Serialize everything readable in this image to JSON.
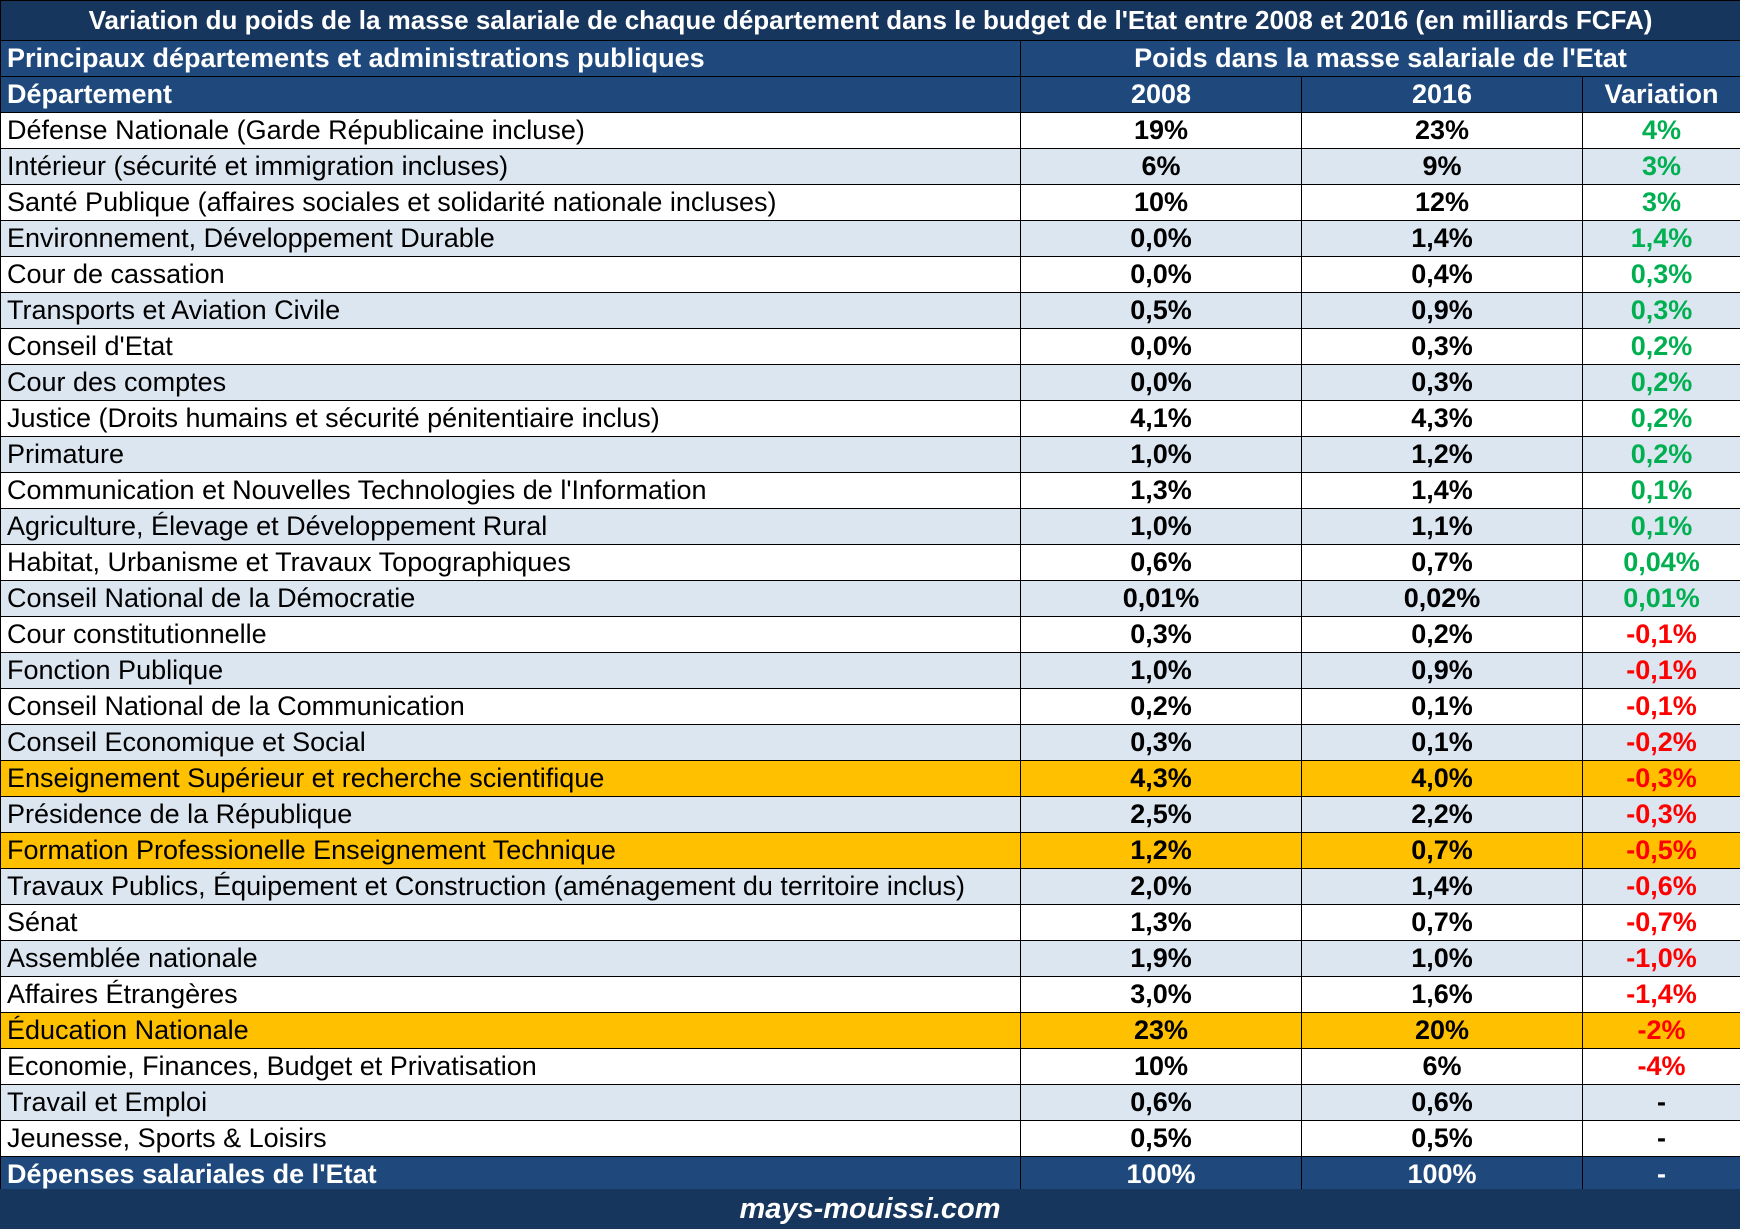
{
  "title": "Variation du poids de la masse salariale de chaque département dans le budget de l'Etat entre 2008 et 2016 (en milliards FCFA)",
  "group_headers": {
    "left": "Principaux départements et administrations publiques",
    "right": "Poids dans la masse salariale de l'Etat"
  },
  "columns": {
    "department": "Département",
    "y2008": "2008",
    "y2016": "2016",
    "variation": "Variation"
  },
  "colors": {
    "title_bg": "#17365d",
    "header_bg": "#1f497d",
    "row_alt": "#dce6f1",
    "highlight": "#ffc000",
    "positive": "#00b050",
    "negative": "#ff0000"
  },
  "chart_data": {
    "type": "table",
    "rows": [
      {
        "department": "Défense Nationale (Garde Républicaine incluse)",
        "y2008": "19%",
        "y2016": "23%",
        "variation": "4%",
        "sign": "pos",
        "highlight": false
      },
      {
        "department": "Intérieur (sécurité et immigration incluses)",
        "y2008": "6%",
        "y2016": "9%",
        "variation": "3%",
        "sign": "pos",
        "highlight": false
      },
      {
        "department": "Santé Publique (affaires sociales et solidarité nationale incluses)",
        "y2008": "10%",
        "y2016": "12%",
        "variation": "3%",
        "sign": "pos",
        "highlight": false
      },
      {
        "department": "Environnement, Développement Durable",
        "y2008": "0,0%",
        "y2016": "1,4%",
        "variation": "1,4%",
        "sign": "pos",
        "highlight": false
      },
      {
        "department": "Cour de cassation",
        "y2008": "0,0%",
        "y2016": "0,4%",
        "variation": "0,3%",
        "sign": "pos",
        "highlight": false
      },
      {
        "department": "Transports et Aviation Civile",
        "y2008": "0,5%",
        "y2016": "0,9%",
        "variation": "0,3%",
        "sign": "pos",
        "highlight": false
      },
      {
        "department": "Conseil d'Etat",
        "y2008": "0,0%",
        "y2016": "0,3%",
        "variation": "0,2%",
        "sign": "pos",
        "highlight": false
      },
      {
        "department": "Cour des comptes",
        "y2008": "0,0%",
        "y2016": "0,3%",
        "variation": "0,2%",
        "sign": "pos",
        "highlight": false
      },
      {
        "department": "Justice (Droits humains et sécurité pénitentiaire inclus)",
        "y2008": "4,1%",
        "y2016": "4,3%",
        "variation": "0,2%",
        "sign": "pos",
        "highlight": false
      },
      {
        "department": "Primature",
        "y2008": "1,0%",
        "y2016": "1,2%",
        "variation": "0,2%",
        "sign": "pos",
        "highlight": false
      },
      {
        "department": "Communication et Nouvelles Technologies de l'Information",
        "y2008": "1,3%",
        "y2016": "1,4%",
        "variation": "0,1%",
        "sign": "pos",
        "highlight": false
      },
      {
        "department": "Agriculture, Élevage et Développement Rural",
        "y2008": "1,0%",
        "y2016": "1,1%",
        "variation": "0,1%",
        "sign": "pos",
        "highlight": false
      },
      {
        "department": "Habitat, Urbanisme et Travaux Topographiques",
        "y2008": "0,6%",
        "y2016": "0,7%",
        "variation": "0,04%",
        "sign": "pos",
        "highlight": false
      },
      {
        "department": "Conseil National de la Démocratie",
        "y2008": "0,01%",
        "y2016": "0,02%",
        "variation": "0,01%",
        "sign": "pos",
        "highlight": false
      },
      {
        "department": "Cour constitutionnelle",
        "y2008": "0,3%",
        "y2016": "0,2%",
        "variation": "-0,1%",
        "sign": "neg",
        "highlight": false
      },
      {
        "department": "Fonction Publique",
        "y2008": "1,0%",
        "y2016": "0,9%",
        "variation": "-0,1%",
        "sign": "neg",
        "highlight": false
      },
      {
        "department": "Conseil National de la Communication",
        "y2008": "0,2%",
        "y2016": "0,1%",
        "variation": "-0,1%",
        "sign": "neg",
        "highlight": false
      },
      {
        "department": "Conseil Economique et Social",
        "y2008": "0,3%",
        "y2016": "0,1%",
        "variation": "-0,2%",
        "sign": "neg",
        "highlight": false
      },
      {
        "department": "Enseignement Supérieur et recherche scientifique",
        "y2008": "4,3%",
        "y2016": "4,0%",
        "variation": "-0,3%",
        "sign": "neg",
        "highlight": true
      },
      {
        "department": "Présidence de la République",
        "y2008": "2,5%",
        "y2016": "2,2%",
        "variation": "-0,3%",
        "sign": "neg",
        "highlight": false
      },
      {
        "department": "Formation Professionelle Enseignement Technique",
        "y2008": "1,2%",
        "y2016": "0,7%",
        "variation": "-0,5%",
        "sign": "neg",
        "highlight": true
      },
      {
        "department": "Travaux Publics, Équipement et Construction (aménagement du territoire inclus)",
        "y2008": "2,0%",
        "y2016": "1,4%",
        "variation": "-0,6%",
        "sign": "neg",
        "highlight": false
      },
      {
        "department": "Sénat",
        "y2008": "1,3%",
        "y2016": "0,7%",
        "variation": "-0,7%",
        "sign": "neg",
        "highlight": false
      },
      {
        "department": "Assemblée nationale",
        "y2008": "1,9%",
        "y2016": "1,0%",
        "variation": "-1,0%",
        "sign": "neg",
        "highlight": false
      },
      {
        "department": "Affaires Étrangères",
        "y2008": "3,0%",
        "y2016": "1,6%",
        "variation": "-1,4%",
        "sign": "neg",
        "highlight": false
      },
      {
        "department": "Éducation Nationale",
        "y2008": "23%",
        "y2016": "20%",
        "variation": "-2%",
        "sign": "neg",
        "highlight": true
      },
      {
        "department": "Economie, Finances, Budget et Privatisation",
        "y2008": "10%",
        "y2016": "6%",
        "variation": "-4%",
        "sign": "neg",
        "highlight": false
      },
      {
        "department": "Travail et Emploi",
        "y2008": "0,6%",
        "y2016": "0,6%",
        "variation": "-",
        "sign": "neu",
        "highlight": false
      },
      {
        "department": "Jeunesse, Sports & Loisirs",
        "y2008": "0,5%",
        "y2016": "0,5%",
        "variation": "-",
        "sign": "neu",
        "highlight": false
      }
    ],
    "total": {
      "department": "Dépenses salariales de l'Etat",
      "y2008": "100%",
      "y2016": "100%",
      "variation": "-"
    }
  },
  "footer": "mays-mouissi.com"
}
